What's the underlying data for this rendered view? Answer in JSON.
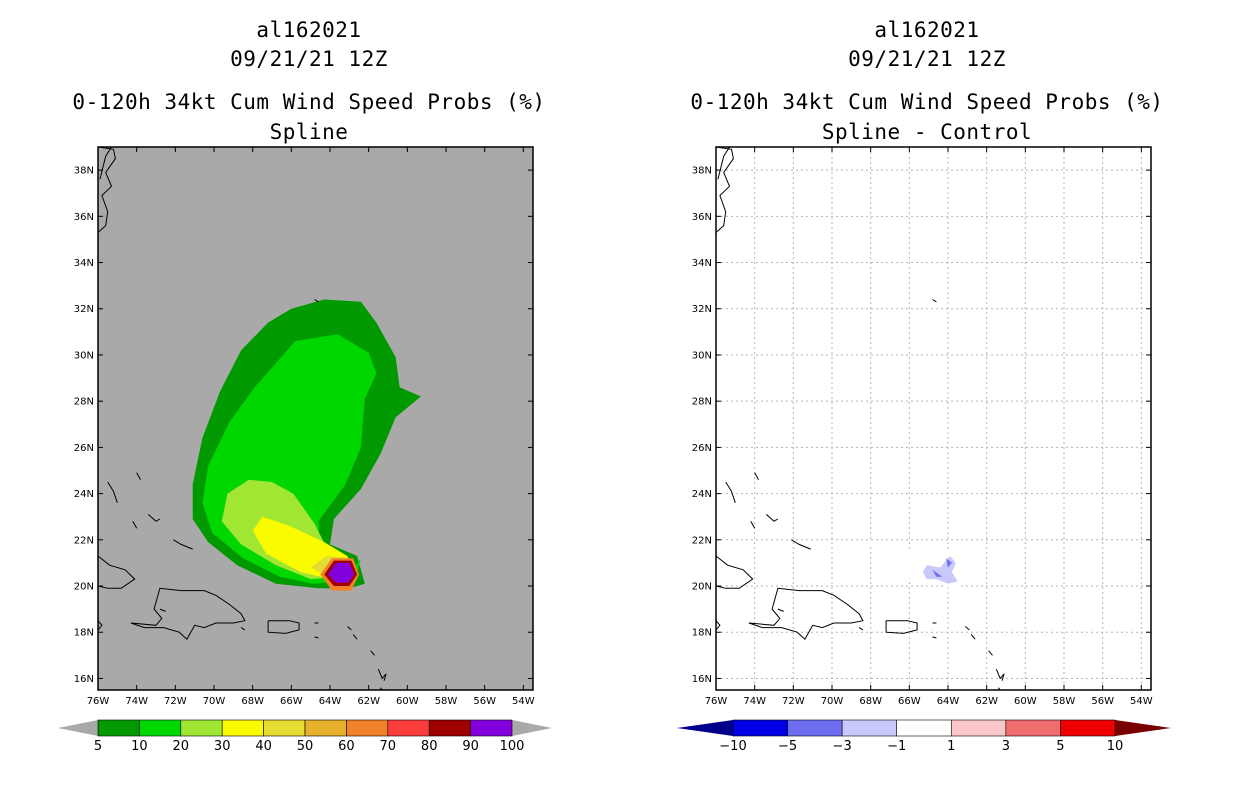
{
  "panels": [
    {
      "storm": "al162021",
      "date": "09/21/21 12Z",
      "product": "0-120h 34kt Cum Wind Speed Probs (%)",
      "subtitle": "Spline"
    },
    {
      "storm": "al162021",
      "date": "09/21/21 12Z",
      "product": "0-120h 34kt Cum Wind Speed Probs (%)",
      "subtitle": "Spline - Control"
    }
  ],
  "chart_data": [
    {
      "type": "heatmap",
      "title": "0-120h 34kt Cum Wind Speed Probs (%) Spline",
      "xlim": [
        -76,
        -53.5
      ],
      "ylim": [
        15.5,
        39
      ],
      "x_tick_labels": [
        "76W",
        "74W",
        "72W",
        "70W",
        "68W",
        "66W",
        "64W",
        "62W",
        "60W",
        "58W",
        "56W",
        "54W"
      ],
      "y_tick_labels": [
        "16N",
        "18N",
        "20N",
        "22N",
        "24N",
        "26N",
        "28N",
        "30N",
        "32N",
        "34N",
        "36N",
        "38N"
      ],
      "grid": false,
      "background_color": "#a9a9a9",
      "colorbar": {
        "levels": [
          "5",
          "10",
          "20",
          "30",
          "40",
          "50",
          "60",
          "70",
          "80",
          "90",
          "100"
        ],
        "colors": [
          "#009a00",
          "#00d600",
          "#a0e632",
          "#fafa00",
          "#e6dc32",
          "#e6af2d",
          "#f08228",
          "#fa3c3c",
          "#a00000",
          "#8200dc"
        ],
        "low_extend_color": "#a9a9a9",
        "high_extend_color": "#a9a9a9"
      },
      "contours": [
        {
          "level": 5,
          "polygon": [
            [
              -64.3,
              32.4
            ],
            [
              -62.4,
              32.3
            ],
            [
              -61.6,
              31.4
            ],
            [
              -60.6,
              29.9
            ],
            [
              -60.4,
              28.6
            ],
            [
              -59.3,
              28.2
            ],
            [
              -60.6,
              27.3
            ],
            [
              -61.4,
              25.7
            ],
            [
              -62.4,
              24.2
            ],
            [
              -63.8,
              22.9
            ],
            [
              -64.0,
              21.8
            ],
            [
              -62.6,
              21.3
            ],
            [
              -62.2,
              20.1
            ],
            [
              -63.0,
              19.9
            ],
            [
              -64.6,
              19.9
            ],
            [
              -66.8,
              20.1
            ],
            [
              -68.8,
              20.9
            ],
            [
              -70.3,
              21.9
            ],
            [
              -71.1,
              22.9
            ],
            [
              -71.1,
              24.4
            ],
            [
              -70.6,
              26.4
            ],
            [
              -69.7,
              28.4
            ],
            [
              -68.6,
              30.2
            ],
            [
              -67.2,
              31.4
            ],
            [
              -66.0,
              32.0
            ]
          ]
        },
        {
          "level": 10,
          "polygon": [
            [
              -65.8,
              30.6
            ],
            [
              -63.6,
              30.9
            ],
            [
              -62.0,
              30.1
            ],
            [
              -61.6,
              29.2
            ],
            [
              -62.2,
              28.1
            ],
            [
              -62.4,
              26.0
            ],
            [
              -63.2,
              24.4
            ],
            [
              -64.6,
              22.8
            ],
            [
              -64.5,
              21.5
            ],
            [
              -63.8,
              20.6
            ],
            [
              -62.6,
              20.6
            ],
            [
              -62.4,
              21.2
            ],
            [
              -63.2,
              20.2
            ],
            [
              -64.9,
              20.1
            ],
            [
              -66.6,
              20.4
            ],
            [
              -68.5,
              21.2
            ],
            [
              -70.1,
              22.3
            ],
            [
              -70.6,
              23.6
            ],
            [
              -70.3,
              25.2
            ],
            [
              -69.2,
              27.1
            ],
            [
              -67.9,
              28.6
            ]
          ]
        },
        {
          "level": 20,
          "polygon": [
            [
              -67.0,
              24.5
            ],
            [
              -65.9,
              24.0
            ],
            [
              -64.8,
              22.7
            ],
            [
              -64.2,
              21.7
            ],
            [
              -63.4,
              20.9
            ],
            [
              -62.7,
              21.0
            ],
            [
              -63.4,
              20.4
            ],
            [
              -65.0,
              20.3
            ],
            [
              -66.8,
              20.9
            ],
            [
              -68.6,
              21.8
            ],
            [
              -69.6,
              22.8
            ],
            [
              -69.3,
              24.0
            ],
            [
              -68.2,
              24.6
            ]
          ]
        },
        {
          "level": 30,
          "polygon": [
            [
              -67.5,
              23.0
            ],
            [
              -66.1,
              22.6
            ],
            [
              -64.3,
              21.9
            ],
            [
              -63.1,
              21.3
            ],
            [
              -62.8,
              20.6
            ],
            [
              -63.9,
              20.3
            ],
            [
              -65.5,
              20.6
            ],
            [
              -67.3,
              21.4
            ],
            [
              -68.0,
              22.4
            ]
          ]
        },
        {
          "level": 40,
          "polygon": [
            [
              -64.2,
              21.3
            ],
            [
              -63.0,
              21.2
            ],
            [
              -62.7,
              20.4
            ],
            [
              -63.7,
              20.2
            ],
            [
              -65.0,
              20.8
            ]
          ]
        },
        {
          "level": 60,
          "polygon": [
            [
              -63.9,
              21.2
            ],
            [
              -62.8,
              21.2
            ],
            [
              -62.5,
              20.5
            ],
            [
              -62.9,
              19.8
            ],
            [
              -63.9,
              19.8
            ],
            [
              -64.5,
              20.5
            ]
          ]
        },
        {
          "level": 80,
          "polygon": [
            [
              -63.8,
              21.1
            ],
            [
              -62.9,
              21.1
            ],
            [
              -62.6,
              20.5
            ],
            [
              -63.0,
              20.0
            ],
            [
              -63.8,
              20.0
            ],
            [
              -64.3,
              20.5
            ]
          ]
        },
        {
          "level": 100,
          "polygon": [
            [
              -63.7,
              21.0
            ],
            [
              -63.0,
              21.0
            ],
            [
              -62.75,
              20.5
            ],
            [
              -63.05,
              20.15
            ],
            [
              -63.7,
              20.15
            ],
            [
              -64.1,
              20.5
            ]
          ]
        }
      ]
    },
    {
      "type": "heatmap",
      "title": "0-120h 34kt Cum Wind Speed Probs (%) Spline - Control",
      "xlim": [
        -76,
        -53.5
      ],
      "ylim": [
        15.5,
        39
      ],
      "x_tick_labels": [
        "76W",
        "74W",
        "72W",
        "70W",
        "68W",
        "66W",
        "64W",
        "62W",
        "60W",
        "58W",
        "56W",
        "54W"
      ],
      "y_tick_labels": [
        "16N",
        "18N",
        "20N",
        "22N",
        "24N",
        "26N",
        "28N",
        "30N",
        "32N",
        "34N",
        "36N",
        "38N"
      ],
      "grid": true,
      "background_color": "#ffffff",
      "colorbar": {
        "levels": [
          "-10",
          "-5",
          "-3",
          "-1",
          "1",
          "3",
          "5",
          "10"
        ],
        "colors": [
          "#0000e6",
          "#6e6ef0",
          "#c8c8fa",
          "#ffffff",
          "#fac8c8",
          "#f06e6e",
          "#f00000"
        ],
        "low_extend_color": "#00008c",
        "high_extend_color": "#780000"
      },
      "contours": [
        {
          "level": -1,
          "polygon": [
            [
              -68.1,
              22.0
            ],
            [
              -67.8,
              21.9
            ],
            [
              -68.0,
              21.8
            ]
          ]
        },
        {
          "level": -1,
          "polygon": [
            [
              -66.4,
              21.6
            ],
            [
              -65.3,
              21.5
            ],
            [
              -64.5,
              21.1
            ],
            [
              -63.9,
              21.6
            ],
            [
              -63.4,
              21.3
            ],
            [
              -63.6,
              20.7
            ],
            [
              -63.3,
              20.0
            ],
            [
              -63.9,
              19.9
            ],
            [
              -64.5,
              20.1
            ],
            [
              -65.2,
              20.0
            ],
            [
              -66.2,
              20.4
            ],
            [
              -66.5,
              21.0
            ]
          ]
        },
        {
          "level": -3,
          "polygon": [
            [
              -65.1,
              20.9
            ],
            [
              -64.4,
              20.8
            ],
            [
              -63.9,
              21.3
            ],
            [
              -63.6,
              21.0
            ],
            [
              -63.8,
              20.6
            ],
            [
              -63.5,
              20.2
            ],
            [
              -64.0,
              20.1
            ],
            [
              -64.6,
              20.3
            ],
            [
              -65.1,
              20.3
            ],
            [
              -65.3,
              20.6
            ]
          ]
        },
        {
          "level": -5,
          "polygon": [
            [
              -64.8,
              20.7
            ],
            [
              -64.3,
              20.4
            ],
            [
              -64.6,
              20.4
            ]
          ]
        },
        {
          "level": -5,
          "polygon": [
            [
              -64.1,
              21.2
            ],
            [
              -63.8,
              21.0
            ],
            [
              -64.0,
              20.8
            ]
          ]
        }
      ]
    }
  ]
}
